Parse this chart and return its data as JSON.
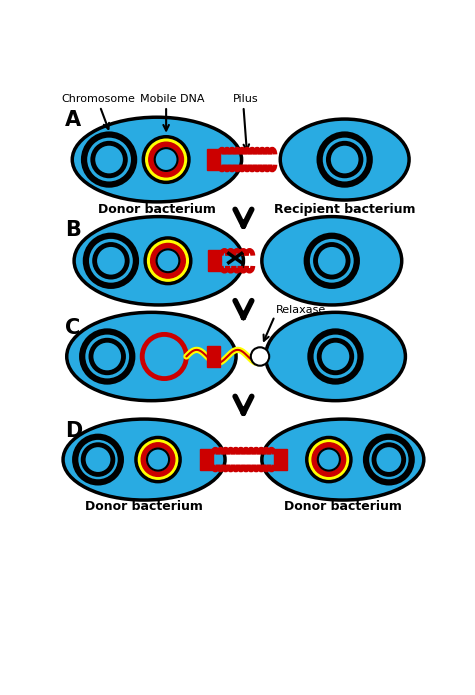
{
  "bg_color": "#ffffff",
  "cyan": "#29ABE2",
  "black": "#000000",
  "red": "#CC0000",
  "yellow": "#FFFF00",
  "white": "#FFFFFF",
  "donor_label": "Donor bacterium",
  "recipient_label": "Recipient bacterium",
  "chromosome_label": "Chromosome",
  "mobile_dna_label": "Mobile DNA",
  "pilus_label": "Pilus",
  "relaxase_label": "Relaxase",
  "fig_width": 4.75,
  "fig_height": 6.95,
  "dpi": 100,
  "xmax": 10.0,
  "ymax": 14.0
}
